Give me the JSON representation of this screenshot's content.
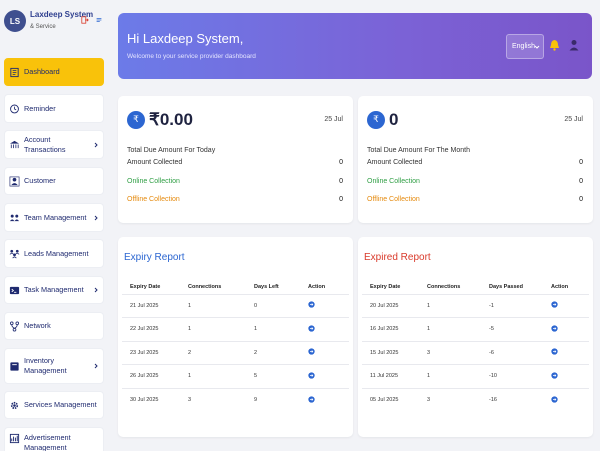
{
  "sidebar": {
    "avatar": "LS",
    "brand": "Laxdeep System",
    "brand_sub": "& Service",
    "items": [
      {
        "label": "Dashboard",
        "active": true
      },
      {
        "label": "Reminder"
      },
      {
        "label": "Account Transactions",
        "chevron": true
      },
      {
        "label": "Customer"
      },
      {
        "label": "Team Management",
        "chevron": true
      },
      {
        "label": "Leads Management"
      },
      {
        "label": "Task Management",
        "chevron": true
      },
      {
        "label": "Network"
      },
      {
        "label": "Inventory Management",
        "chevron": true
      },
      {
        "label": "Services Management"
      },
      {
        "label": "Advertisement Management"
      }
    ]
  },
  "header": {
    "greeting": "Hi Laxdeep System,",
    "subtitle": "Welcome to your service provider dashboard",
    "language": "English"
  },
  "stats": [
    {
      "amount": "₹0.00",
      "date": "25 Jul",
      "heading": "Total Due Amount For Today",
      "rows": [
        {
          "label": "Amount Collected",
          "value": "0"
        },
        {
          "label": "Online Collection",
          "value": "0"
        },
        {
          "label": "Offline Collection",
          "value": "0"
        }
      ]
    },
    {
      "amount": "0",
      "date": "25 Jul",
      "heading": "Total Due Amount For The Month",
      "rows": [
        {
          "label": "Amount Collected",
          "value": "0"
        },
        {
          "label": "Online Collection",
          "value": "0"
        },
        {
          "label": "Offline Collection",
          "value": "0"
        }
      ]
    }
  ],
  "expiry_report": {
    "title": "Expiry Report",
    "columns": [
      "Expiry Date",
      "Connections",
      "Days Left",
      "Action"
    ],
    "rows": [
      [
        "21 Jul 2025",
        "1",
        "0"
      ],
      [
        "22 Jul 2025",
        "1",
        "1"
      ],
      [
        "23 Jul 2025",
        "2",
        "2"
      ],
      [
        "26 Jul 2025",
        "1",
        "5"
      ],
      [
        "30 Jul 2025",
        "3",
        "9"
      ]
    ]
  },
  "expired_report": {
    "title": "Expired Report",
    "columns": [
      "Expiry Date",
      "Connections",
      "Days Passed",
      "Action"
    ],
    "rows": [
      [
        "20 Jul 2025",
        "1",
        "-1"
      ],
      [
        "16 Jul 2025",
        "1",
        "-5"
      ],
      [
        "15 Jul 2025",
        "3",
        "-6"
      ],
      [
        "11 Jul 2025",
        "1",
        "-10"
      ],
      [
        "05 Jul 2025",
        "3",
        "-16"
      ]
    ]
  },
  "colors": {
    "accent": "#f9c20a",
    "primary": "#2c66d1",
    "banner_start": "#6c7be8",
    "banner_end": "#7a55c9",
    "online": "#2f9e44",
    "offline": "#e58a0e",
    "expired": "#d93a2b"
  }
}
